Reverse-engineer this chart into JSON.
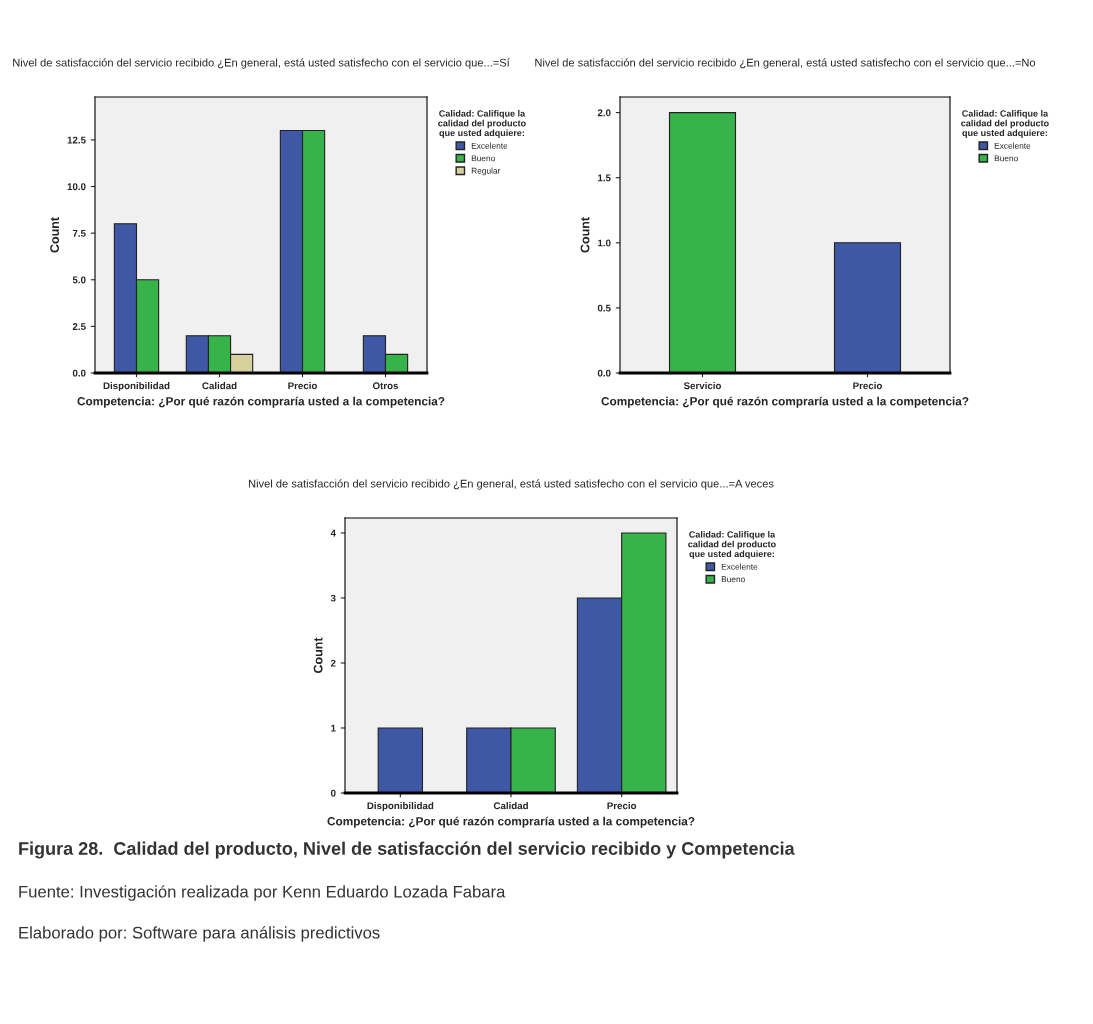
{
  "chart_data": [
    {
      "type": "bar",
      "title": "Nivel de satisfacción del servicio recibido ¿En general, está usted satisfecho con el servicio que...=Sí",
      "xlabel": "Competencia: ¿Por qué razón compraría usted a la competencia?",
      "ylabel": "Count",
      "legend_title": "Calidad: Califique la\ncalidad del producto\nque usted adquiere:",
      "categories": [
        "Disponibilidad",
        "Calidad",
        "Precio",
        "Otros"
      ],
      "series": [
        {
          "name": "Excelente",
          "color": "#3f58a6",
          "values": [
            8,
            2,
            13,
            2
          ]
        },
        {
          "name": "Bueno",
          "color": "#37b34a",
          "values": [
            5,
            2,
            13,
            1
          ]
        },
        {
          "name": "Regular",
          "color": "#d5d09c",
          "values": [
            null,
            1,
            null,
            null
          ]
        }
      ],
      "ylim": [
        0,
        14.8
      ],
      "yticks": [
        {
          "value": 0,
          "label": "0.0"
        },
        2.5,
        {
          "value": 5,
          "label": "5.0"
        },
        7.5,
        {
          "value": 10,
          "label": "10.0"
        },
        12.5
      ],
      "legend": "right"
    },
    {
      "type": "bar",
      "title": "Nivel de satisfacción del servicio recibido ¿En general, está usted satisfecho con el servicio que...=No",
      "xlabel": "Competencia: ¿Por qué razón compraría usted a la competencia?",
      "ylabel": "Count",
      "legend_title": "Calidad: Califique la\ncalidad del producto\nque usted adquiere:",
      "categories": [
        "Servicio",
        "Precio"
      ],
      "series": [
        {
          "name": "Excelente",
          "color": "#3f58a6",
          "values": [
            null,
            1
          ]
        },
        {
          "name": "Bueno",
          "color": "#37b34a",
          "values": [
            2,
            null
          ]
        }
      ],
      "ylim": [
        0,
        2.12
      ],
      "yticks": [
        {
          "value": 0,
          "label": "0.0"
        },
        0.5,
        {
          "value": 1,
          "label": "1.0"
        },
        1.5,
        {
          "value": 2,
          "label": "2.0"
        }
      ],
      "legend": "right"
    },
    {
      "type": "bar",
      "title": "Nivel de satisfacción del servicio recibido ¿En general, está usted satisfecho con el servicio que...=A veces",
      "xlabel": "Competencia: ¿Por qué razón compraría usted a la competencia?",
      "ylabel": "Count",
      "legend_title": "Calidad: Califique la\ncalidad del producto\nque usted adquiere:",
      "categories": [
        "Disponibilidad",
        "Calidad",
        "Precio"
      ],
      "series": [
        {
          "name": "Excelente",
          "color": "#3f58a6",
          "values": [
            1,
            1,
            3
          ]
        },
        {
          "name": "Bueno",
          "color": "#37b34a",
          "values": [
            null,
            1,
            4
          ]
        }
      ],
      "ylim": [
        0,
        4.23
      ],
      "yticks": [
        0,
        1,
        2,
        3,
        4
      ],
      "legend": "right",
      "annotations": [
        "Figura 28.  Calidad del producto, Nivel de satisfacción del servicio recibido y Competencia",
        "Fuente: Investigación realizada por Kenn Eduardo Lozada Fabara",
        "Elaborado por: Software para análisis predictivos"
      ]
    }
  ]
}
